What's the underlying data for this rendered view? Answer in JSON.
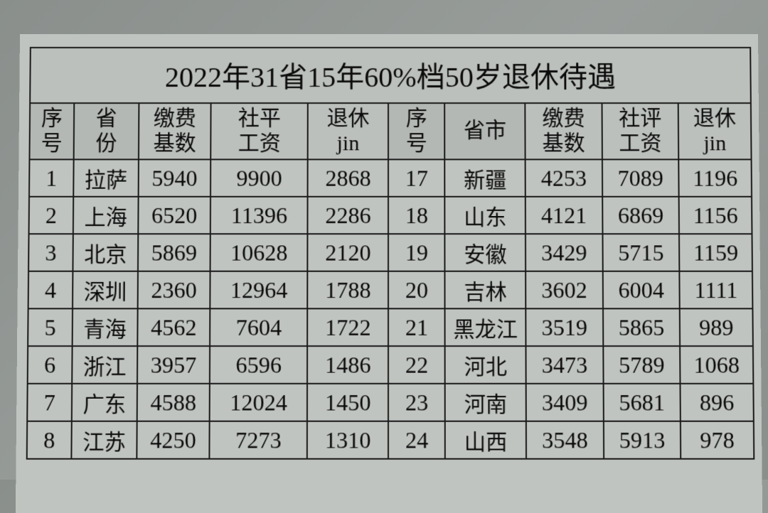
{
  "title": "2022年31省15年60%档50岁退休待遇",
  "headers": {
    "left": {
      "seq": "序\n号",
      "prov": "省\n份",
      "base": "缴费\n基数",
      "wage": "社平\n工资",
      "pension": "退休\njin"
    },
    "right": {
      "seq": "序\n号",
      "prov": "省市",
      "base": "缴费\n基数",
      "wage": "社评\n工资",
      "pension": "退休\njin"
    }
  },
  "rows": [
    {
      "l": {
        "seq": "1",
        "prov": "拉萨",
        "base": "5940",
        "wage": "9900",
        "pen": "2868"
      },
      "r": {
        "seq": "17",
        "prov": "新疆",
        "base": "4253",
        "wage": "7089",
        "pen": "1196"
      }
    },
    {
      "l": {
        "seq": "2",
        "prov": "上海",
        "base": "6520",
        "wage": "11396",
        "pen": "2286"
      },
      "r": {
        "seq": "18",
        "prov": "山东",
        "base": "4121",
        "wage": "6869",
        "pen": "1156"
      }
    },
    {
      "l": {
        "seq": "3",
        "prov": "北京",
        "base": "5869",
        "wage": "10628",
        "pen": "2120"
      },
      "r": {
        "seq": "19",
        "prov": "安徽",
        "base": "3429",
        "wage": "5715",
        "pen": "1159"
      }
    },
    {
      "l": {
        "seq": "4",
        "prov": "深圳",
        "base": "2360",
        "wage": "12964",
        "pen": "1788"
      },
      "r": {
        "seq": "20",
        "prov": "吉林",
        "base": "3602",
        "wage": "6004",
        "pen": "1111"
      }
    },
    {
      "l": {
        "seq": "5",
        "prov": "青海",
        "base": "4562",
        "wage": "7604",
        "pen": "1722"
      },
      "r": {
        "seq": "21",
        "prov": "黑龙江",
        "base": "3519",
        "wage": "5865",
        "pen": "989"
      }
    },
    {
      "l": {
        "seq": "6",
        "prov": "浙江",
        "base": "3957",
        "wage": "6596",
        "pen": "1486"
      },
      "r": {
        "seq": "22",
        "prov": "河北",
        "base": "3473",
        "wage": "5789",
        "pen": "1068"
      }
    },
    {
      "l": {
        "seq": "7",
        "prov": "广东",
        "base": "4588",
        "wage": "12024",
        "pen": "1450"
      },
      "r": {
        "seq": "23",
        "prov": "河南",
        "base": "3409",
        "wage": "5681",
        "pen": "896"
      }
    },
    {
      "l": {
        "seq": "8",
        "prov": "江苏",
        "base": "4250",
        "wage": "7273",
        "pen": "1310"
      },
      "r": {
        "seq": "24",
        "prov": "山西",
        "base": "3548",
        "wage": "5913",
        "pen": "978"
      }
    }
  ],
  "styling": {
    "background_color": "#c0c4c0",
    "border_color": "#1a1a1a",
    "text_color": "#0a0a0a",
    "title_fontsize": 40,
    "header_fontsize": 30,
    "data_fontsize": 32,
    "border_width": 2,
    "font_family_cjk": "SimSun",
    "font_family_num": "Times New Roman"
  }
}
